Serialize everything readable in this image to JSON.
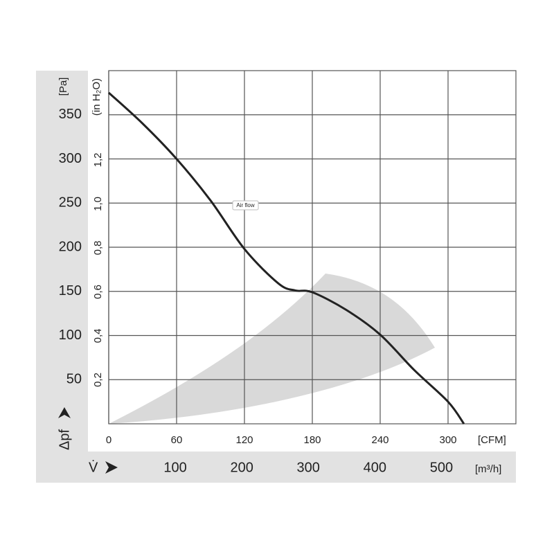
{
  "chart_data": {
    "type": "line",
    "y_axis_label": "[Pa]",
    "y_symbol": "Δpf",
    "y2_axis_label": "(in H₂O)",
    "x_axis_label": "[CFM]",
    "x2_axis_label": "[m³/h]",
    "x2_symbol": "V̇",
    "annotation": "Air flow",
    "x": [
      0,
      30,
      60,
      90,
      120,
      150,
      165,
      180,
      210,
      240,
      270,
      300,
      314
    ],
    "series": [
      {
        "color": "#222222",
        "values": [
          375,
          340,
          300,
          253,
          198,
          159,
          151,
          149,
          129,
          101,
          61,
          25,
          0
        ]
      }
    ],
    "xlim": [
      0,
      360
    ],
    "xticks": [
      0,
      60,
      120,
      180,
      240,
      300
    ],
    "x2lim": [
      0,
      612
    ],
    "x2ticks": [
      100,
      200,
      300,
      400,
      500
    ],
    "ylim": [
      0,
      400
    ],
    "yticks": [
      50,
      100,
      150,
      200,
      250,
      300,
      350
    ],
    "y2lim": [
      0,
      1.606
    ],
    "y2ticks": [
      {
        "value": 0.2,
        "label": "0,2"
      },
      {
        "value": 0.4,
        "label": "0,4"
      },
      {
        "value": 0.6,
        "label": "0,6"
      },
      {
        "value": 0.8,
        "label": "0,8"
      },
      {
        "value": 1.0,
        "label": "1,0"
      },
      {
        "value": 1.2,
        "label": "1,2"
      }
    ],
    "grid": true
  }
}
